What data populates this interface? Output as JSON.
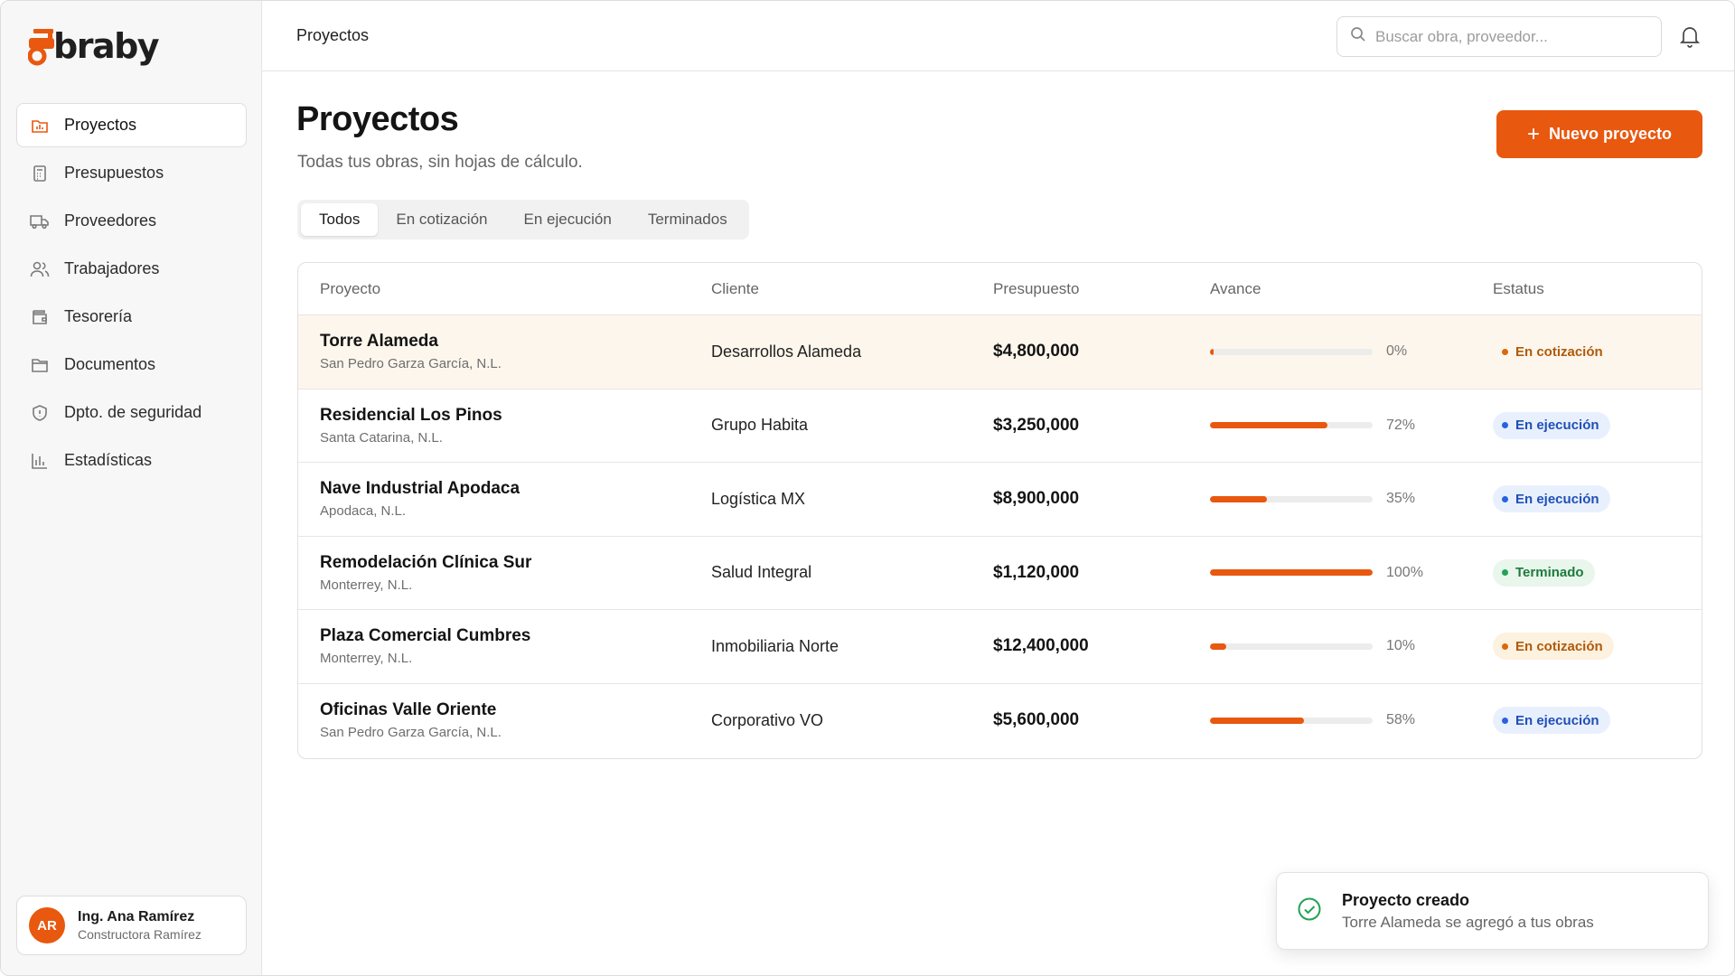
{
  "app": {
    "logo_text": "braby",
    "accent": "#e8580f"
  },
  "sidebar": {
    "items": [
      {
        "label": "Proyectos",
        "icon": "chart-folder-icon",
        "active": true
      },
      {
        "label": "Presupuestos",
        "icon": "calculator-icon"
      },
      {
        "label": "Proveedores",
        "icon": "truck-icon"
      },
      {
        "label": "Trabajadores",
        "icon": "users-icon"
      },
      {
        "label": "Tesorería",
        "icon": "wallet-icon"
      },
      {
        "label": "Documentos",
        "icon": "folder-icon"
      },
      {
        "label": "Dpto. de seguridad",
        "icon": "shield-icon"
      },
      {
        "label": "Estadísticas",
        "icon": "bar-chart-icon"
      }
    ],
    "user": {
      "initials": "AR",
      "name": "Ing. Ana Ramírez",
      "company": "Constructora Ramírez"
    }
  },
  "topbar": {
    "breadcrumb": "Proyectos",
    "search_placeholder": "Buscar obra, proveedor...",
    "notifications_icon": "bell-icon"
  },
  "main": {
    "title": "Proyectos",
    "subtitle": "Todas tus obras, sin hojas de cálculo.",
    "new_button": "Nuevo proyecto",
    "tabs": [
      {
        "label": "Todos",
        "active": true
      },
      {
        "label": "En cotización"
      },
      {
        "label": "En ejecución"
      },
      {
        "label": "Terminados"
      }
    ],
    "table": {
      "columns": [
        "Proyecto",
        "Cliente",
        "Presupuesto",
        "Avance",
        "Estatus"
      ],
      "rows": [
        {
          "name": "Torre Alameda",
          "location": "San Pedro Garza García, N.L.",
          "client": "Desarrollos Alameda",
          "budget": "$4,800,000",
          "progress": 0,
          "progress_label": "0%",
          "status": "En cotización",
          "status_kind": "cotizacion",
          "highlight": true
        },
        {
          "name": "Residencial Los Pinos",
          "location": "Santa Catarina, N.L.",
          "client": "Grupo Habita",
          "budget": "$3,250,000",
          "progress": 72,
          "progress_label": "72%",
          "status": "En ejecución",
          "status_kind": "ejecucion"
        },
        {
          "name": "Nave Industrial Apodaca",
          "location": "Apodaca, N.L.",
          "client": "Logística MX",
          "budget": "$8,900,000",
          "progress": 35,
          "progress_label": "35%",
          "status": "En ejecución",
          "status_kind": "ejecucion"
        },
        {
          "name": "Remodelación Clínica Sur",
          "location": "Monterrey, N.L.",
          "client": "Salud Integral",
          "budget": "$1,120,000",
          "progress": 100,
          "progress_label": "100%",
          "status": "Terminado",
          "status_kind": "terminado"
        },
        {
          "name": "Plaza Comercial Cumbres",
          "location": "Monterrey, N.L.",
          "client": "Inmobiliaria Norte",
          "budget": "$12,400,000",
          "progress": 10,
          "progress_label": "10%",
          "status": "En cotización",
          "status_kind": "cotizacion"
        },
        {
          "name": "Oficinas Valle Oriente",
          "location": "San Pedro Garza García, N.L.",
          "client": "Corporativo VO",
          "budget": "$5,600,000",
          "progress": 58,
          "progress_label": "58%",
          "status": "En ejecución",
          "status_kind": "ejecucion"
        }
      ]
    }
  },
  "toast": {
    "icon": "check-circle-icon",
    "title": "Proyecto creado",
    "message": "Torre Alameda se agregó a tus obras"
  }
}
